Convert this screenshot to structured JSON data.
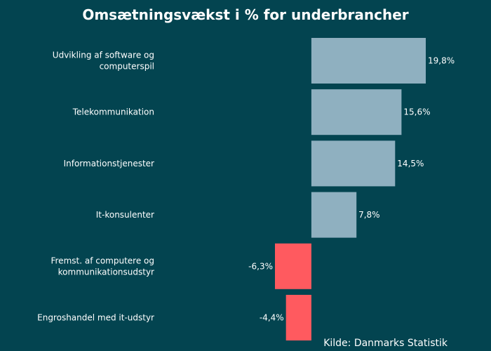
{
  "chart_data": {
    "type": "bar",
    "orientation": "horizontal",
    "title": "Omsætningsvækst i % for underbrancher",
    "source": "Kilde: Danmarks Statistik",
    "categories": [
      [
        "Udvikling af software og",
        "computerspil"
      ],
      [
        "Telekommunikation"
      ],
      [
        "Informationstjenester"
      ],
      [
        "It-konsulenter"
      ],
      [
        "Fremst. af computere og",
        "kommunikationsudstyr"
      ],
      [
        "Engroshandel med it-udstyr"
      ]
    ],
    "values": [
      19.8,
      15.6,
      14.5,
      7.8,
      -6.3,
      -4.4
    ],
    "value_labels": [
      "19,8%",
      "15,6%",
      "14,5%",
      "7,8%",
      "-6,3%",
      "-4,4%"
    ],
    "xlim": [
      -6.3,
      19.8
    ],
    "colors": {
      "background": "#034450",
      "positive": "#8fb0c0",
      "negative": "#ff5a5f",
      "text": "#ffffff"
    }
  }
}
